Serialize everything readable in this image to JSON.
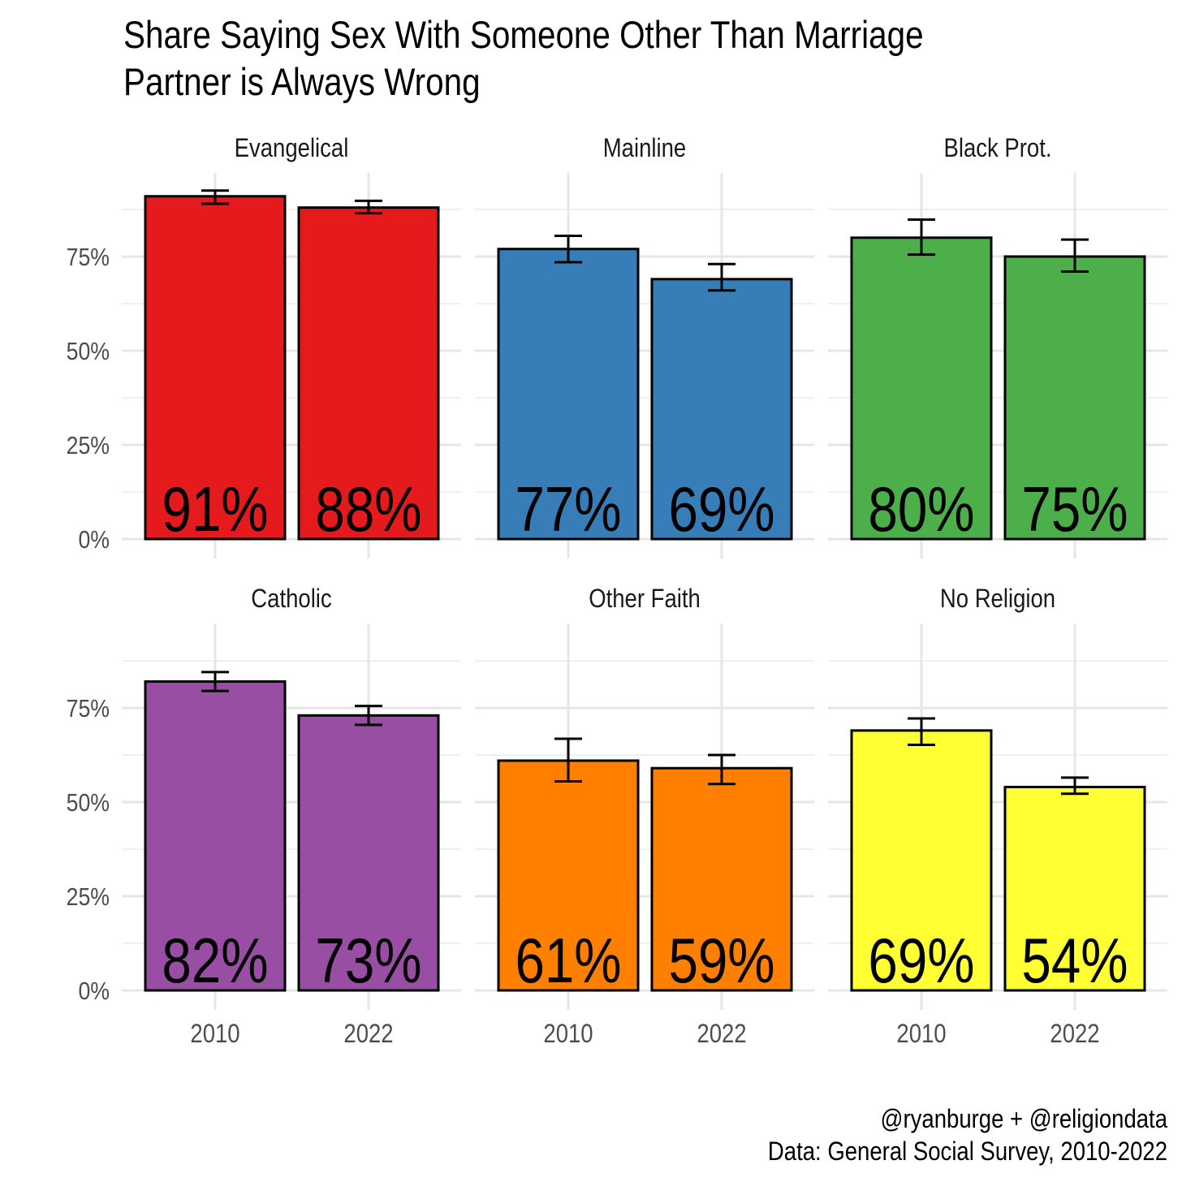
{
  "chart_data": {
    "type": "bar",
    "title": "Share Saying Sex With Someone Other Than Marriage Partner is Always Wrong",
    "title_lines": [
      "Share Saying Sex With Someone Other Than Marriage",
      "Partner is Always Wrong"
    ],
    "xlabel": "",
    "ylabel": "",
    "ylim": [
      0,
      0.97
    ],
    "y_ticks": [
      0,
      0.25,
      0.5,
      0.75
    ],
    "y_tick_labels": [
      "0%",
      "25%",
      "50%",
      "75%"
    ],
    "categories": [
      "2010",
      "2022"
    ],
    "grid": true,
    "legend": "none",
    "panels": [
      {
        "name": "Evangelical",
        "color": "#E41A1C",
        "values": [
          0.91,
          0.88
        ],
        "labels": [
          "91%",
          "88%"
        ],
        "ci_low": [
          0.89,
          0.865
        ],
        "ci_high": [
          0.925,
          0.898
        ]
      },
      {
        "name": "Mainline",
        "color": "#377EB8",
        "values": [
          0.77,
          0.69
        ],
        "labels": [
          "77%",
          "69%"
        ],
        "ci_low": [
          0.735,
          0.66
        ],
        "ci_high": [
          0.805,
          0.73
        ]
      },
      {
        "name": "Black Prot.",
        "color": "#4DAF4A",
        "values": [
          0.8,
          0.75
        ],
        "labels": [
          "80%",
          "75%"
        ],
        "ci_low": [
          0.755,
          0.71
        ],
        "ci_high": [
          0.848,
          0.795
        ]
      },
      {
        "name": "Catholic",
        "color": "#984EA3",
        "values": [
          0.82,
          0.73
        ],
        "labels": [
          "82%",
          "73%"
        ],
        "ci_low": [
          0.795,
          0.705
        ],
        "ci_high": [
          0.845,
          0.755
        ]
      },
      {
        "name": "Other Faith",
        "color": "#FF7F00",
        "values": [
          0.61,
          0.59
        ],
        "labels": [
          "61%",
          "59%"
        ],
        "ci_low": [
          0.555,
          0.548
        ],
        "ci_high": [
          0.668,
          0.625
        ]
      },
      {
        "name": "No Religion",
        "color": "#FFFF33",
        "values": [
          0.69,
          0.54
        ],
        "labels": [
          "69%",
          "54%"
        ],
        "ci_low": [
          0.652,
          0.522
        ],
        "ci_high": [
          0.722,
          0.565
        ]
      }
    ]
  },
  "caption": {
    "line1": "@ryanburge + @religiondata",
    "line2": "Data: General Social Survey, 2010-2022"
  }
}
